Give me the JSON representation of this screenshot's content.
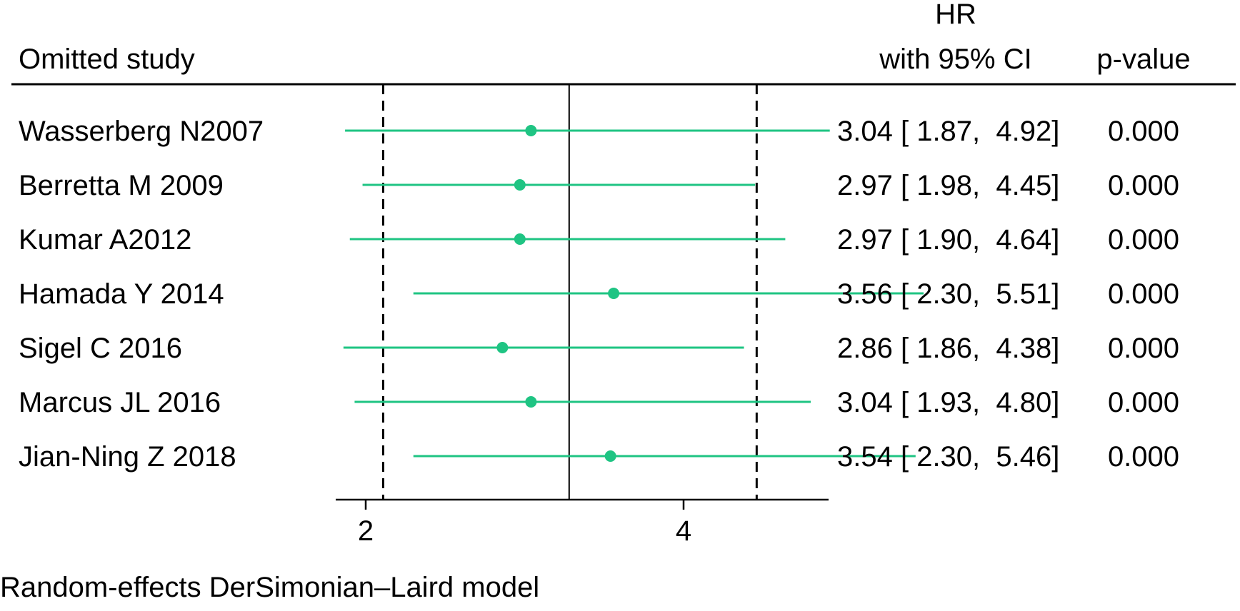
{
  "header": {
    "study_label": "Omitted study",
    "hr_label_line1": "HR",
    "hr_label_line2": "with 95% CI",
    "p_label": "p-value"
  },
  "footer": {
    "model_note": "Random-effects DerSimonian–Laird model"
  },
  "chart_data": {
    "type": "forest",
    "x_ticks": [
      2,
      4
    ],
    "overall_estimate": 3.28,
    "overall_ci": [
      2.11,
      4.46
    ],
    "style": {
      "marker_color": "#1fc483",
      "grid": false
    },
    "studies": [
      {
        "name": "Wasserberg N2007",
        "hr": 3.04,
        "lo": 1.87,
        "hi": 4.92,
        "hr_text": "3.04 [ 1.87,  4.92]",
        "p": "0.000"
      },
      {
        "name": "Berretta M 2009",
        "hr": 2.97,
        "lo": 1.98,
        "hi": 4.45,
        "hr_text": "2.97 [ 1.98,  4.45]",
        "p": "0.000"
      },
      {
        "name": "Kumar A2012",
        "hr": 2.97,
        "lo": 1.9,
        "hi": 4.64,
        "hr_text": "2.97 [ 1.90,  4.64]",
        "p": "0.000"
      },
      {
        "name": "Hamada Y 2014",
        "hr": 3.56,
        "lo": 2.3,
        "hi": 5.51,
        "hr_text": "3.56 [ 2.30,  5.51]",
        "p": "0.000"
      },
      {
        "name": "Sigel C 2016",
        "hr": 2.86,
        "lo": 1.86,
        "hi": 4.38,
        "hr_text": "2.86 [ 1.86,  4.38]",
        "p": "0.000"
      },
      {
        "name": "Marcus JL 2016",
        "hr": 3.04,
        "lo": 1.93,
        "hi": 4.8,
        "hr_text": "3.04 [ 1.93,  4.80]",
        "p": "0.000"
      },
      {
        "name": "Jian-Ning Z 2018",
        "hr": 3.54,
        "lo": 2.3,
        "hi": 5.46,
        "hr_text": "3.54 [ 2.30,  5.46]",
        "p": "0.000"
      }
    ]
  }
}
